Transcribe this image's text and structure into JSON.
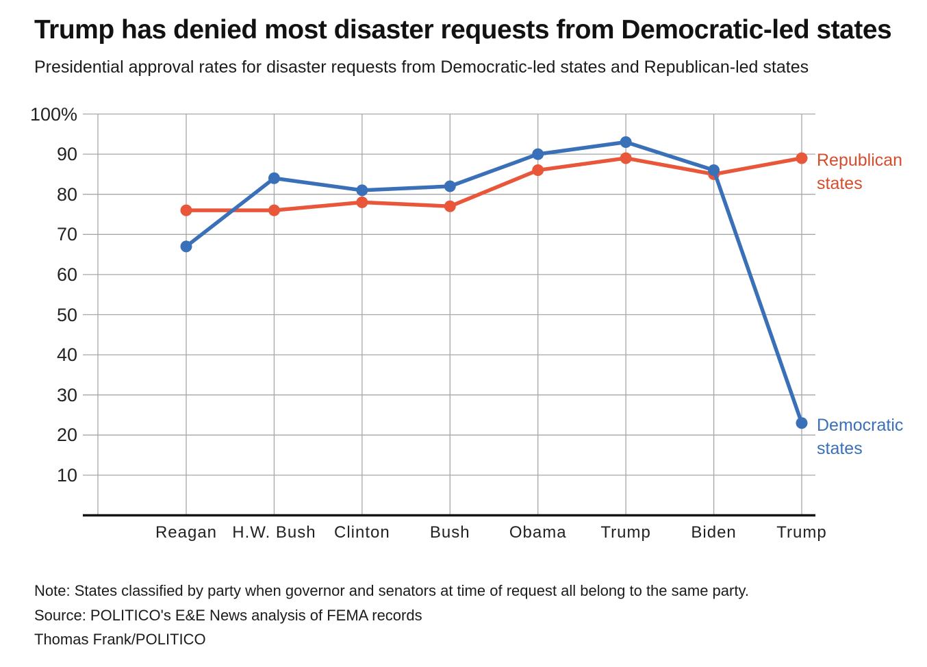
{
  "header": {
    "title": "Trump has denied most disaster requests from Democratic-led states",
    "subtitle": "Presidential approval rates for disaster requests from Democratic-led states and Republican-led states"
  },
  "chart_data": {
    "type": "line",
    "categories": [
      "Reagan",
      "H.W. Bush",
      "Clinton",
      "Bush",
      "Obama",
      "Trump",
      "Biden",
      "Trump"
    ],
    "series": [
      {
        "name": "Republican states",
        "values": [
          76,
          76,
          78,
          77,
          86,
          89,
          85,
          89
        ],
        "color": "#E8573A",
        "label_color": "#D64D2D",
        "label_lines": [
          "Republican",
          "states"
        ]
      },
      {
        "name": "Democratic states",
        "values": [
          67,
          84,
          81,
          82,
          90,
          93,
          86,
          23
        ],
        "color": "#3A70B8",
        "label_color": "#3A70B8",
        "label_lines": [
          "Democratic",
          "states"
        ]
      }
    ],
    "y_axis": {
      "tick_values": [
        100,
        90,
        80,
        70,
        60,
        50,
        40,
        30,
        20,
        10
      ],
      "tick_labels": [
        "100%",
        "90",
        "80",
        "70",
        "60",
        "50",
        "40",
        "30",
        "20",
        "10"
      ],
      "range": [
        0,
        100
      ],
      "grid": true
    },
    "x_axis": {
      "grid": true
    },
    "legend_position": "right-of-last-points",
    "grid_color": "#A6A6A6",
    "axis_color": "#141414",
    "marker": "circle"
  },
  "footer": {
    "note": "Note: States classified by party when governor and senators at time of request all belong to the same party.",
    "source": "Source: POLITICO's E&E News analysis of FEMA records",
    "byline": "Thomas Frank/POLITICO"
  }
}
